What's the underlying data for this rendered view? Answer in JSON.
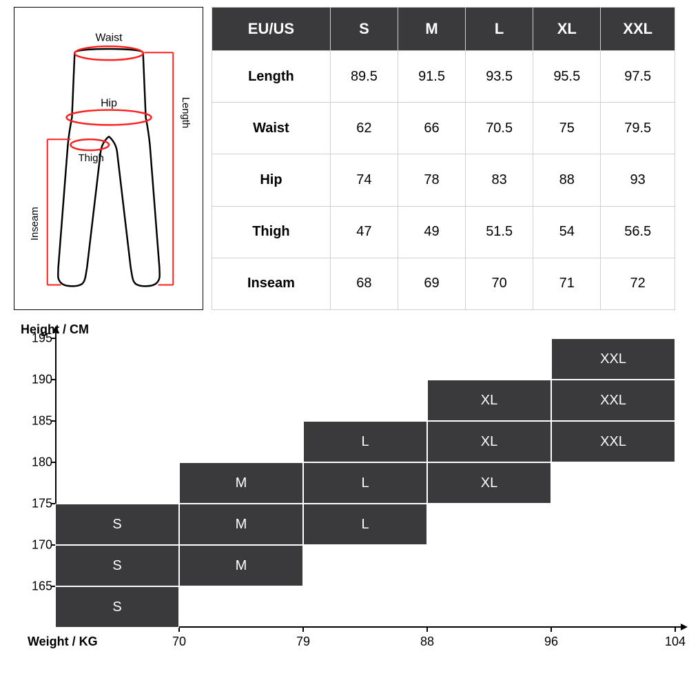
{
  "colors": {
    "dark": "#3a3a3c",
    "white": "#ffffff",
    "border": "#d0d0d0",
    "red": "#ff1e1e",
    "black": "#000000"
  },
  "diagram": {
    "labels": {
      "waist": "Waist",
      "hip": "Hip",
      "thigh": "Thigh",
      "length": "Length",
      "inseam": "Inseam"
    }
  },
  "sizeTable": {
    "header": [
      "EU/US",
      "S",
      "M",
      "L",
      "XL",
      "XXL"
    ],
    "rows": [
      {
        "label": "Length",
        "values": [
          "89.5",
          "91.5",
          "93.5",
          "95.5",
          "97.5"
        ]
      },
      {
        "label": "Waist",
        "values": [
          "62",
          "66",
          "70.5",
          "75",
          "79.5"
        ]
      },
      {
        "label": "Hip",
        "values": [
          "74",
          "78",
          "83",
          "88",
          "93"
        ]
      },
      {
        "label": "Thigh",
        "values": [
          "47",
          "49",
          "51.5",
          "54",
          "56.5"
        ]
      },
      {
        "label": "Inseam",
        "values": [
          "68",
          "69",
          "70",
          "71",
          "72"
        ]
      }
    ]
  },
  "chart": {
    "yTitle": "Height / CM",
    "xTitle": "Weight / KG",
    "yMin": 160,
    "yMax": 195,
    "yTicks": [
      160,
      165,
      170,
      175,
      180,
      185,
      190,
      195
    ],
    "xBreaks": [
      60,
      70,
      79,
      88,
      96,
      104
    ],
    "xTickLabels": [
      "70",
      "79",
      "88",
      "96",
      "104"
    ],
    "rowHeightPx": 60,
    "colWidthPx": 180,
    "blocks": [
      {
        "col": 0,
        "rowBottom": 160,
        "rowTop": 165,
        "label": "S"
      },
      {
        "col": 0,
        "rowBottom": 165,
        "rowTop": 170,
        "label": "S"
      },
      {
        "col": 0,
        "rowBottom": 170,
        "rowTop": 175,
        "label": "S"
      },
      {
        "col": 1,
        "rowBottom": 165,
        "rowTop": 170,
        "label": "M"
      },
      {
        "col": 1,
        "rowBottom": 170,
        "rowTop": 175,
        "label": "M"
      },
      {
        "col": 1,
        "rowBottom": 175,
        "rowTop": 180,
        "label": "M"
      },
      {
        "col": 2,
        "rowBottom": 170,
        "rowTop": 175,
        "label": "L"
      },
      {
        "col": 2,
        "rowBottom": 175,
        "rowTop": 180,
        "label": "L"
      },
      {
        "col": 2,
        "rowBottom": 180,
        "rowTop": 185,
        "label": "L"
      },
      {
        "col": 3,
        "rowBottom": 175,
        "rowTop": 180,
        "label": "XL"
      },
      {
        "col": 3,
        "rowBottom": 180,
        "rowTop": 185,
        "label": "XL"
      },
      {
        "col": 3,
        "rowBottom": 185,
        "rowTop": 190,
        "label": "XL"
      },
      {
        "col": 4,
        "rowBottom": 180,
        "rowTop": 185,
        "label": "XXL"
      },
      {
        "col": 4,
        "rowBottom": 185,
        "rowTop": 190,
        "label": "XXL"
      },
      {
        "col": 4,
        "rowBottom": 190,
        "rowTop": 195,
        "label": "XXL"
      }
    ]
  }
}
